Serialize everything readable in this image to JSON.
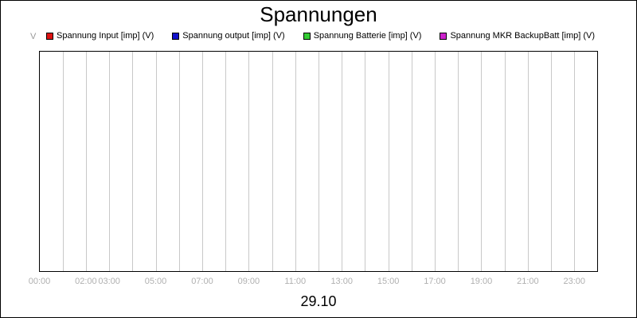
{
  "chart_data": {
    "type": "line",
    "title": "Spannungen",
    "ylabel": "V",
    "xlabel": "29.10",
    "x_range": [
      0,
      24
    ],
    "x_ticks": [
      {
        "hour": 0,
        "label": "00:00"
      },
      {
        "hour": 2,
        "label": "02:00"
      },
      {
        "hour": 3,
        "label": "03:00"
      },
      {
        "hour": 5,
        "label": "05:00"
      },
      {
        "hour": 7,
        "label": "07:00"
      },
      {
        "hour": 9,
        "label": "09:00"
      },
      {
        "hour": 11,
        "label": "11:00"
      },
      {
        "hour": 13,
        "label": "13:00"
      },
      {
        "hour": 15,
        "label": "15:00"
      },
      {
        "hour": 17,
        "label": "17:00"
      },
      {
        "hour": 19,
        "label": "19:00"
      },
      {
        "hour": 21,
        "label": "21:00"
      },
      {
        "hour": 23,
        "label": "23:00"
      }
    ],
    "grid": true,
    "legend_position": "top",
    "series": [
      {
        "name": "Spannung Input [imp] (V)",
        "color": "#dd1111",
        "values": []
      },
      {
        "name": "Spannung output [imp] (V)",
        "color": "#1111cc",
        "values": []
      },
      {
        "name": "Spannung Batterie [imp] (V)",
        "color": "#33cc33",
        "values": []
      },
      {
        "name": "Spannung MKR BackupBatt [imp] (V)",
        "color": "#cc22cc",
        "values": []
      }
    ]
  }
}
